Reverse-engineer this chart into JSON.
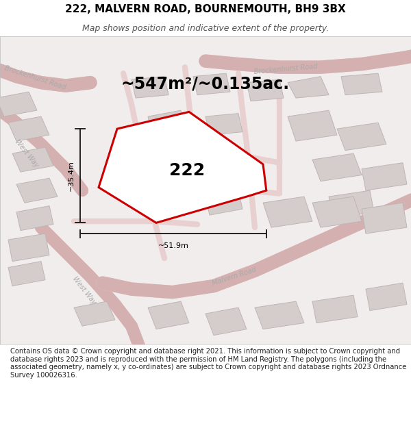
{
  "title_line1": "222, MALVERN ROAD, BOURNEMOUTH, BH9 3BX",
  "title_line2": "Map shows position and indicative extent of the property.",
  "footer_text": "Contains OS data © Crown copyright and database right 2021. This information is subject to Crown copyright and database rights 2023 and is reproduced with the permission of HM Land Registry. The polygons (including the associated geometry, namely x, y co-ordinates) are subject to Crown copyright and database rights 2023 Ordnance Survey 100026316.",
  "area_label": "~547m²/~0.135ac.",
  "property_number": "222",
  "dim_width": "~51.9m",
  "dim_height": "~35.4m",
  "map_bg": "#f2eded",
  "road_fill": "#e8d0d0",
  "road_edge": "#d4b0b0",
  "bld_fill": "#d5cccc",
  "bld_edge": "#bfb5b5",
  "prop_stroke": "#cc0000",
  "prop_fill": "white",
  "dim_color": "#222222",
  "label_color": "#aaaaaa",
  "title_fs": 11,
  "sub_fs": 9,
  "area_fs": 17,
  "num_fs": 18,
  "road_lbl_fs": 7,
  "footer_fs": 7.2
}
